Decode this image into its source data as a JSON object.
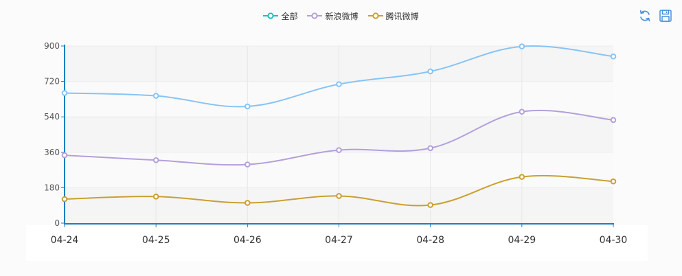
{
  "legend": {
    "items": [
      {
        "label": "全部",
        "color": "#26b8c0"
      },
      {
        "label": "新浪微博",
        "color": "#b49fdc"
      },
      {
        "label": "腾讯微博",
        "color": "#c9a030"
      }
    ]
  },
  "toolbox": {
    "icons": [
      "refresh-icon",
      "save-image-icon"
    ],
    "color": "#4a90d9"
  },
  "chart_data": {
    "type": "line",
    "categories": [
      "04-24",
      "04-25",
      "04-26",
      "04-27",
      "04-28",
      "04-29",
      "04-30"
    ],
    "y_ticks": [
      "0",
      "180",
      "360",
      "540",
      "720",
      "900"
    ],
    "ylim": [
      0,
      900
    ],
    "grid": true,
    "legend_position": "top-center",
    "series": [
      {
        "name": "全部",
        "color": "#86c4f5",
        "values": [
          661,
          647,
          593,
          706,
          771,
          898,
          847
        ]
      },
      {
        "name": "新浪微博",
        "color": "#b49fdc",
        "values": [
          345,
          320,
          298,
          371,
          381,
          566,
          524
        ]
      },
      {
        "name": "腾讯微博",
        "color": "#c9a030",
        "values": [
          122,
          135,
          103,
          138,
          92,
          235,
          212
        ]
      }
    ]
  }
}
